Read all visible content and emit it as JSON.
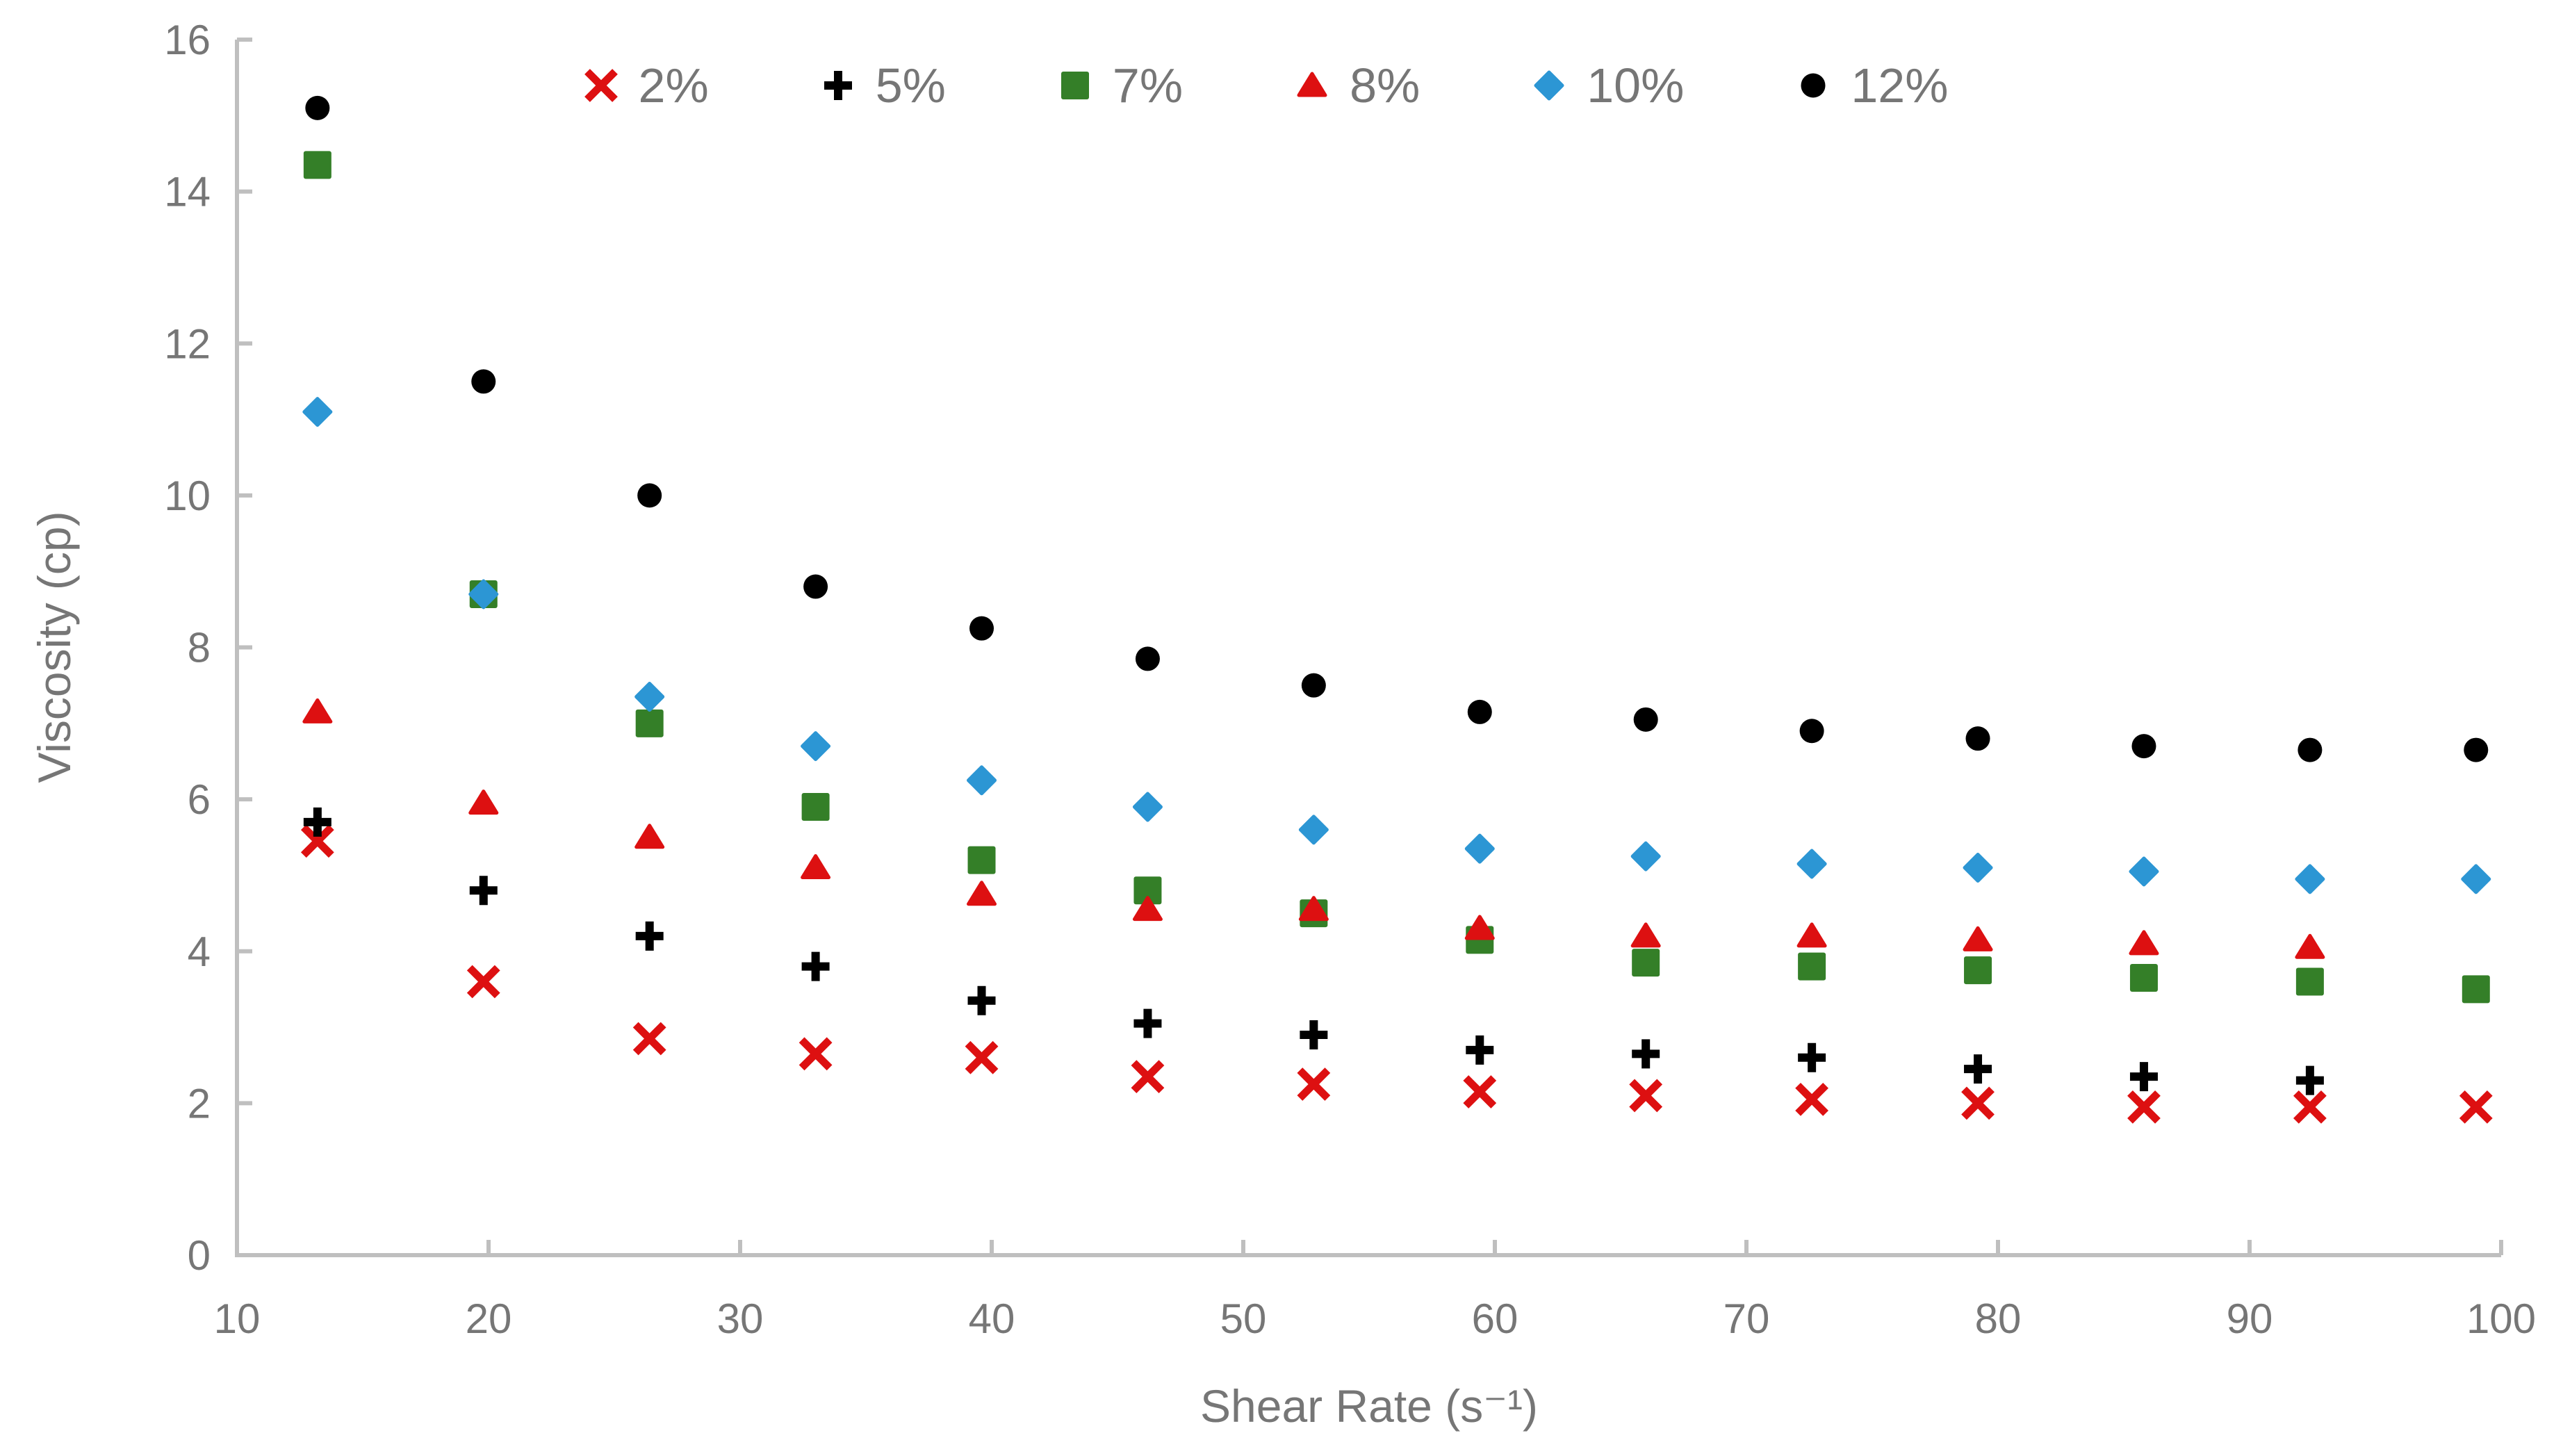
{
  "page": {
    "background": "#FFFFFF"
  },
  "colors": {
    "axis_line": "#BFBFBF",
    "text": "#767676",
    "series_red": "#DD1011",
    "series_green": "#347F28",
    "series_blue": "#2C96D4",
    "series_black": "#000000"
  },
  "chart_data": {
    "type": "scatter",
    "title": "",
    "xlabel": "Shear Rate (s⁻¹)",
    "ylabel": "Viscosity (cp)",
    "xlim": [
      10,
      100
    ],
    "ylim": [
      0,
      16
    ],
    "xticks": [
      10,
      20,
      30,
      40,
      50,
      60,
      70,
      80,
      90,
      100
    ],
    "yticks": [
      0,
      2,
      4,
      6,
      8,
      10,
      12,
      14,
      16
    ],
    "grid": false,
    "legend_position": "top-center",
    "x": [
      13.2,
      19.8,
      26.4,
      33,
      39.6,
      46.2,
      52.8,
      59.4,
      66,
      72.6,
      79.2,
      85.8,
      92.4,
      99
    ],
    "series": [
      {
        "name": "2%",
        "marker": "x",
        "color": "#DD1011",
        "values": [
          5.45,
          3.6,
          2.85,
          2.65,
          2.6,
          2.35,
          2.25,
          2.15,
          2.1,
          2.05,
          2.0,
          1.95,
          1.95,
          1.95
        ]
      },
      {
        "name": "5%",
        "marker": "plus",
        "color": "#000000",
        "values": [
          5.7,
          4.8,
          4.2,
          3.8,
          3.35,
          3.05,
          2.9,
          2.7,
          2.65,
          2.6,
          2.45,
          2.35,
          2.3,
          null
        ]
      },
      {
        "name": "7%",
        "marker": "square",
        "color": "#347F28",
        "values": [
          14.35,
          8.7,
          7.0,
          5.9,
          5.2,
          4.8,
          4.5,
          4.15,
          3.85,
          3.8,
          3.75,
          3.65,
          3.6,
          3.5
        ]
      },
      {
        "name": "8%",
        "marker": "triangle",
        "color": "#DD1011",
        "values": [
          7.15,
          5.95,
          5.5,
          5.1,
          4.75,
          4.55,
          4.55,
          4.3,
          4.2,
          4.2,
          4.15,
          4.1,
          4.05,
          null
        ]
      },
      {
        "name": "10%",
        "marker": "diamond",
        "color": "#2C96D4",
        "values": [
          11.1,
          8.7,
          7.35,
          6.7,
          6.25,
          5.9,
          5.6,
          5.35,
          5.25,
          5.15,
          5.1,
          5.05,
          4.95,
          4.95
        ]
      },
      {
        "name": "12%",
        "marker": "circle",
        "color": "#000000",
        "values": [
          15.1,
          11.5,
          10.0,
          8.8,
          8.25,
          7.85,
          7.5,
          7.15,
          7.05,
          6.9,
          6.8,
          6.7,
          6.65,
          6.65
        ]
      }
    ]
  }
}
